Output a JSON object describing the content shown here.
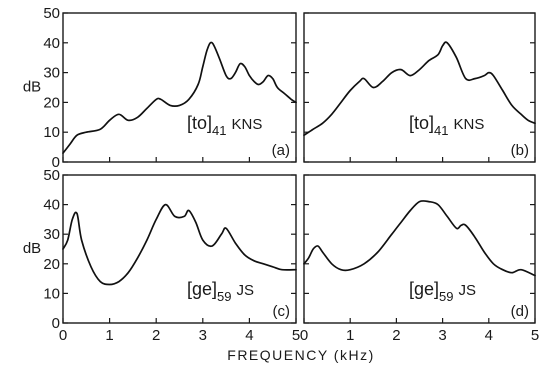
{
  "figure": {
    "xlabel": "FREQUENCY (kHz)",
    "ylabel": "dB"
  },
  "chart_data": [
    {
      "type": "line",
      "panel_letter": "(a)",
      "annotation": {
        "bracket_text": "to",
        "subscript": "41",
        "speaker": "KNS"
      },
      "xlim": [
        0,
        5
      ],
      "ylim": [
        0,
        50
      ],
      "xticks": [],
      "yticks": [
        0,
        10,
        20,
        30,
        40,
        50
      ],
      "ylabel": "dB",
      "series": [
        {
          "x": [
            0,
            0.15,
            0.3,
            0.5,
            0.8,
            1.0,
            1.2,
            1.4,
            1.6,
            1.8,
            2.0,
            2.1,
            2.3,
            2.5,
            2.7,
            2.9,
            3.0,
            3.1,
            3.2,
            3.35,
            3.5,
            3.6,
            3.7,
            3.8,
            3.9,
            4.0,
            4.1,
            4.2,
            4.3,
            4.4,
            4.5,
            4.6,
            4.75,
            4.9,
            5.0
          ],
          "y": [
            3,
            6,
            9,
            10,
            11,
            14,
            16,
            14,
            15,
            18,
            21,
            21,
            19,
            19,
            21,
            26,
            32,
            38,
            40,
            35,
            29,
            28,
            30,
            33,
            32,
            29,
            27,
            26,
            27,
            29,
            28,
            25,
            23,
            21,
            20
          ]
        }
      ]
    },
    {
      "type": "line",
      "panel_letter": "(b)",
      "annotation": {
        "bracket_text": "to",
        "subscript": "41",
        "speaker": "KNS"
      },
      "xlim": [
        0,
        5
      ],
      "ylim": [
        0,
        50
      ],
      "xticks": [],
      "yticks": [],
      "series": [
        {
          "x": [
            0,
            0.2,
            0.4,
            0.6,
            0.8,
            1.0,
            1.2,
            1.3,
            1.5,
            1.7,
            1.9,
            2.1,
            2.3,
            2.5,
            2.7,
            2.9,
            3.0,
            3.1,
            3.3,
            3.5,
            3.7,
            3.9,
            4.0,
            4.1,
            4.3,
            4.5,
            4.7,
            4.85,
            5.0
          ],
          "y": [
            9,
            11,
            13,
            16,
            20,
            24,
            27,
            28,
            25,
            27,
            30,
            31,
            29,
            31,
            34,
            36,
            39,
            40,
            35,
            28,
            28,
            29,
            30,
            29,
            24,
            19,
            16,
            14,
            13
          ]
        }
      ]
    },
    {
      "type": "line",
      "panel_letter": "(c)",
      "annotation": {
        "bracket_text": "ge",
        "subscript": "59",
        "speaker": "JS"
      },
      "xlim": [
        0,
        5
      ],
      "ylim": [
        0,
        50
      ],
      "xticks": [
        0,
        1,
        2,
        3,
        4,
        5
      ],
      "yticks": [
        0,
        10,
        20,
        30,
        40,
        50
      ],
      "ylabel": "dB",
      "series": [
        {
          "x": [
            0,
            0.1,
            0.2,
            0.3,
            0.4,
            0.6,
            0.8,
            1.0,
            1.2,
            1.4,
            1.6,
            1.8,
            2.0,
            2.2,
            2.4,
            2.6,
            2.7,
            2.85,
            3.0,
            3.2,
            3.4,
            3.5,
            3.7,
            3.9,
            4.1,
            4.3,
            4.5,
            4.7,
            5.0
          ],
          "y": [
            25,
            28,
            35,
            37,
            28,
            19,
            14,
            13,
            14,
            17,
            22,
            28,
            35,
            40,
            36,
            36,
            38,
            34,
            28,
            26,
            30,
            32,
            27,
            23,
            21,
            20,
            19,
            18,
            18
          ]
        }
      ]
    },
    {
      "type": "line",
      "panel_letter": "(d)",
      "annotation": {
        "bracket_text": "ge",
        "subscript": "59",
        "speaker": "JS"
      },
      "xlim": [
        0,
        5
      ],
      "ylim": [
        0,
        50
      ],
      "xticks": [
        0,
        1,
        2,
        3,
        4,
        5
      ],
      "yticks": [],
      "series": [
        {
          "x": [
            0,
            0.1,
            0.2,
            0.3,
            0.4,
            0.6,
            0.8,
            1.0,
            1.3,
            1.6,
            1.9,
            2.1,
            2.3,
            2.5,
            2.7,
            2.9,
            3.1,
            3.3,
            3.4,
            3.5,
            3.7,
            3.9,
            4.1,
            4.3,
            4.5,
            4.7,
            5.0
          ],
          "y": [
            20,
            22,
            25,
            26,
            24,
            20,
            18,
            18,
            20,
            24,
            30,
            34,
            38,
            41,
            41,
            40,
            36,
            32,
            33,
            33,
            29,
            24,
            20,
            18,
            17,
            18,
            16
          ]
        }
      ]
    }
  ]
}
